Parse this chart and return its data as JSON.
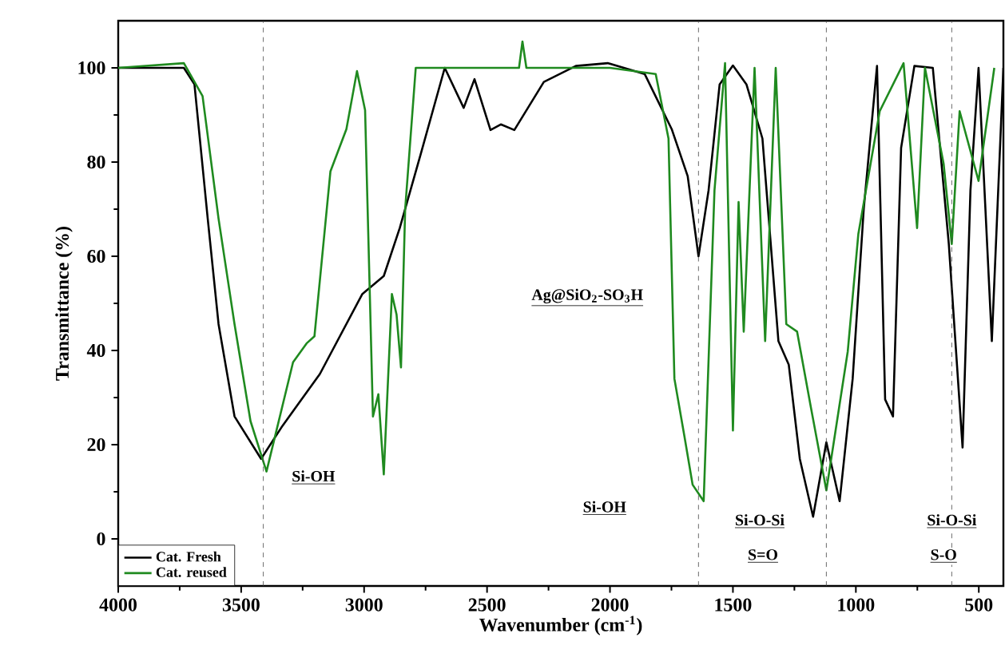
{
  "chart_data": {
    "type": "line",
    "xlabel": "Wavenumber (cm$^{-1}$)",
    "ylabel": "Transmittance (%)",
    "xlim": [
      4000,
      400
    ],
    "ylim": [
      -10,
      110
    ],
    "xticks": [
      4000,
      3500,
      3000,
      2500,
      2000,
      1500,
      1000,
      500
    ],
    "yticks": [
      0,
      20,
      40,
      60,
      80,
      100
    ],
    "legend": "bottom left",
    "grid": false,
    "marker": "none",
    "line_style": "solid",
    "series": [
      {
        "name": "Cat. Fresh",
        "color": "#000000",
        "x": [
          4000,
          3733,
          3690,
          3636,
          3592,
          3527,
          3419,
          3332,
          3180,
          3007,
          2920,
          2855,
          2768,
          2672,
          2595,
          2551,
          2486,
          2444,
          2389,
          2269,
          2139,
          2009,
          1859,
          1749,
          1684,
          1640,
          1599,
          1554,
          1500,
          1445,
          1380,
          1315,
          1273,
          1228,
          1174,
          1120,
          1066,
          1013,
          968,
          914,
          881,
          849,
          816,
          762,
          687,
          622,
          566,
          534,
          501,
          447,
          400
        ],
        "values": [
          100,
          100,
          96.5,
          68,
          45.6,
          26,
          17,
          24,
          35,
          52,
          55.8,
          66,
          82,
          100,
          91.5,
          97.6,
          86.8,
          88,
          86.8,
          97,
          100.4,
          101,
          98.7,
          87,
          77,
          60,
          74,
          96.5,
          100.5,
          96.5,
          85,
          42,
          37,
          17,
          4.7,
          20.5,
          8,
          34,
          70,
          100.4,
          29.6,
          26,
          83,
          100.4,
          100,
          62.6,
          19.4,
          74,
          100,
          42,
          100
        ]
      },
      {
        "name": "Cat. reused",
        "color": "#1f8a1f",
        "x": [
          4000,
          3733,
          3657,
          3592,
          3527,
          3462,
          3397,
          3289,
          3234,
          3202,
          3137,
          3072,
          3029,
          2996,
          2964,
          2942,
          2920,
          2887,
          2868,
          2850,
          2833,
          2790,
          2500,
          2370,
          2356,
          2340,
          2300,
          2000,
          1814,
          1762,
          1738,
          1697,
          1664,
          1619,
          1575,
          1532,
          1500,
          1477,
          1456,
          1412,
          1369,
          1326,
          1283,
          1239,
          1185,
          1120,
          1033,
          990,
          903,
          806,
          751,
          719,
          643,
          610,
          578,
          501,
          437
        ],
        "values": [
          100,
          101,
          94,
          68,
          45.6,
          25,
          14.3,
          37.5,
          41.5,
          43,
          78,
          87,
          99.3,
          91,
          26,
          30.7,
          13.7,
          52,
          47.6,
          36.4,
          70,
          100,
          100,
          100,
          105.6,
          100,
          100,
          100,
          98.7,
          85,
          34,
          21.7,
          11.5,
          8,
          74,
          101,
          23,
          71.5,
          44,
          100,
          42,
          100,
          45.6,
          44,
          28.5,
          10.3,
          39.8,
          64.7,
          90.8,
          101,
          66,
          100,
          79.6,
          62.6,
          90.8,
          76,
          100
        ]
      }
    ],
    "ref_lines": [
      {
        "axis": "x",
        "value": 3410,
        "line_style": "dashed",
        "color": "#444444"
      },
      {
        "axis": "x",
        "value": 1640,
        "line_style": "dashed",
        "color": "#444444"
      },
      {
        "axis": "x",
        "value": 1120,
        "line_style": "dashed",
        "color": "#444444"
      },
      {
        "axis": "x",
        "value": 610,
        "line_style": "dashed",
        "color": "#444444"
      }
    ],
    "annotations": [
      {
        "text": "Si-OH",
        "x": 3206,
        "y": 13
      },
      "Ag@SiO$_{2}$-SO$_{3}$H",
      {
        "text": "Si-OH",
        "x": 2022,
        "y": 6.5
      },
      {
        "text": "Si-O-Si",
        "x": 1391,
        "y": 3.7
      },
      {
        "text": "S=O",
        "x": 1378,
        "y": -3.7
      },
      {
        "text": "Si-O-Si",
        "x": 610,
        "y": 3.7
      },
      {
        "text": "S-O",
        "x": 643,
        "y": -3.7
      }
    ]
  }
}
